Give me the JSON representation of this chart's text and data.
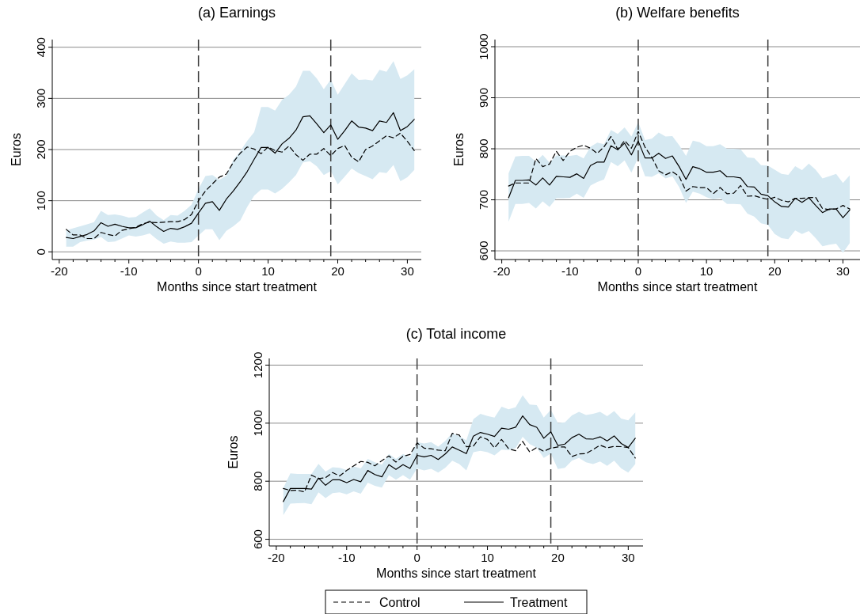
{
  "chart_data": [
    {
      "type": "line",
      "title": "(a) Earnings",
      "xlabel": "Months since start treatment",
      "ylabel": "Euros",
      "x": [
        -19,
        -18,
        -17,
        -16,
        -15,
        -14,
        -13,
        -12,
        -11,
        -10,
        -9,
        -8,
        -7,
        -6,
        -5,
        -4,
        -3,
        -2,
        -1,
        0,
        1,
        2,
        3,
        4,
        5,
        6,
        7,
        8,
        9,
        10,
        11,
        12,
        13,
        14,
        15,
        16,
        17,
        18,
        19,
        20,
        21,
        22,
        23,
        24,
        25,
        26,
        27,
        28,
        29,
        30,
        31
      ],
      "xlim": [
        -21,
        32
      ],
      "xticks": [
        -20,
        {
          "value": -18,
          "label": null
        },
        {
          "value": -16,
          "label": null
        },
        {
          "value": -14,
          "label": null
        },
        {
          "value": -12,
          "label": null
        },
        -10,
        {
          "value": -8,
          "label": null
        },
        {
          "value": -6,
          "label": null
        },
        {
          "value": -4,
          "label": null
        },
        {
          "value": -2,
          "label": null
        },
        0,
        {
          "value": 2,
          "label": null
        },
        {
          "value": 4,
          "label": null
        },
        {
          "value": 6,
          "label": null
        },
        {
          "value": 8,
          "label": null
        },
        10,
        {
          "value": 12,
          "label": null
        },
        {
          "value": 14,
          "label": null
        },
        {
          "value": 16,
          "label": null
        },
        {
          "value": 18,
          "label": null
        },
        20,
        {
          "value": 22,
          "label": null
        },
        {
          "value": 24,
          "label": null
        },
        {
          "value": 26,
          "label": null
        },
        {
          "value": 28,
          "label": null
        },
        30
      ],
      "ylim": [
        -15,
        415
      ],
      "yticks": [
        0,
        100,
        200,
        300,
        400
      ],
      "grid": "y",
      "line_style": "solid",
      "marker": "none",
      "ref_lines": [
        {
          "axis": "x",
          "value": 0,
          "line_style": "dashed",
          "color": "#3c3c3c"
        },
        {
          "axis": "x",
          "value": 19,
          "line_style": "dashed",
          "color": "#3c3c3c"
        }
      ],
      "series": [
        {
          "color": "#000000",
          "line_style": "dashed",
          "values": [
            44,
            33,
            33,
            26,
            26,
            38,
            34,
            31,
            42,
            45,
            48,
            55,
            58,
            57,
            58,
            59,
            59,
            63,
            73,
            100,
            119,
            133,
            146,
            152,
            175,
            193,
            205,
            201,
            192,
            205,
            198,
            195,
            207,
            190,
            179,
            191,
            191,
            202,
            188,
            202,
            208,
            185,
            176,
            200,
            207,
            217,
            227,
            223,
            232,
            216,
            198
          ]
        },
        {
          "color": "#000000",
          "values": [
            28,
            26,
            30,
            34,
            41,
            57,
            50,
            54,
            50,
            47,
            47,
            53,
            60,
            49,
            40,
            46,
            44,
            49,
            56,
            76,
            95,
            98,
            81,
            103,
            119,
            137,
            157,
            181,
            204,
            204,
            193,
            211,
            222,
            238,
            264,
            266,
            250,
            233,
            248,
            220,
            237,
            256,
            244,
            242,
            237,
            256,
            253,
            272,
            237,
            245,
            259
          ],
          "lower": [
            10,
            10,
            19,
            22,
            24,
            29,
            19,
            20,
            26,
            32,
            30,
            32,
            36,
            25,
            16,
            20,
            18,
            18,
            19,
            32,
            44,
            44,
            23,
            41,
            50,
            61,
            88,
            110,
            122,
            122,
            114,
            123,
            136,
            150,
            175,
            177,
            167,
            150,
            158,
            132,
            147,
            163,
            154,
            148,
            142,
            156,
            154,
            170,
            138,
            146,
            160
          ],
          "upper": [
            42,
            46,
            50,
            54,
            58,
            80,
            72,
            73,
            71,
            67,
            68,
            77,
            85,
            71,
            62,
            72,
            71,
            80,
            92,
            123,
            148,
            150,
            141,
            149,
            180,
            197,
            217,
            234,
            283,
            283,
            276,
            297,
            307,
            323,
            354,
            354,
            339,
            318,
            337,
            307,
            328,
            349,
            336,
            337,
            335,
            356,
            352,
            373,
            338,
            345,
            357
          ]
        }
      ]
    },
    {
      "type": "line",
      "title": "(b) Welfare benefits",
      "xlabel": "Months since start treatment",
      "ylabel": "Euros",
      "x": [
        -19,
        -18,
        -17,
        -16,
        -15,
        -14,
        -13,
        -12,
        -11,
        -10,
        -9,
        -8,
        -7,
        -6,
        -5,
        -4,
        -3,
        -2,
        -1,
        0,
        1,
        2,
        3,
        4,
        5,
        6,
        7,
        8,
        9,
        10,
        11,
        12,
        13,
        14,
        15,
        16,
        17,
        18,
        19,
        20,
        21,
        22,
        23,
        24,
        25,
        26,
        27,
        28,
        29,
        30,
        31
      ],
      "xlim": [
        -21,
        32.5
      ],
      "xticks": [
        -20,
        {
          "value": -18,
          "label": null
        },
        {
          "value": -16,
          "label": null
        },
        {
          "value": -14,
          "label": null
        },
        {
          "value": -12,
          "label": null
        },
        -10,
        {
          "value": -8,
          "label": null
        },
        {
          "value": -6,
          "label": null
        },
        {
          "value": -4,
          "label": null
        },
        {
          "value": -2,
          "label": null
        },
        0,
        {
          "value": 2,
          "label": null
        },
        {
          "value": 4,
          "label": null
        },
        {
          "value": 6,
          "label": null
        },
        {
          "value": 8,
          "label": null
        },
        10,
        {
          "value": 12,
          "label": null
        },
        {
          "value": 14,
          "label": null
        },
        {
          "value": 16,
          "label": null
        },
        {
          "value": 18,
          "label": null
        },
        20,
        {
          "value": 22,
          "label": null
        },
        {
          "value": 24,
          "label": null
        },
        {
          "value": 26,
          "label": null
        },
        {
          "value": 28,
          "label": null
        },
        30
      ],
      "ylim": [
        583,
        1014
      ],
      "yticks": [
        600,
        700,
        800,
        900,
        1000
      ],
      "grid": "y",
      "line_style": "solid",
      "marker": "none",
      "ref_lines": [
        {
          "axis": "x",
          "value": 0,
          "line_style": "dashed",
          "color": "#3c3c3c"
        },
        {
          "axis": "x",
          "value": 19,
          "line_style": "dashed",
          "color": "#3c3c3c"
        }
      ],
      "series": [
        {
          "color": "#000000",
          "line_style": "dashed",
          "values": [
            727,
            733,
            733,
            733,
            781,
            765,
            770,
            795,
            777,
            795,
            803,
            807,
            801,
            791,
            804,
            824,
            799,
            816,
            801,
            834,
            803,
            783,
            757,
            749,
            755,
            746,
            717,
            726,
            724,
            724,
            712,
            724,
            712,
            713,
            728,
            707,
            708,
            704,
            701,
            705,
            699,
            696,
            703,
            703,
            704,
            705,
            683,
            681,
            682,
            689,
            682
          ]
        },
        {
          "color": "#000000",
          "values": [
            704,
            738,
            738,
            739,
            729,
            743,
            729,
            746,
            745,
            744,
            751,
            742,
            767,
            774,
            774,
            806,
            798,
            811,
            788,
            815,
            782,
            782,
            791,
            781,
            786,
            765,
            740,
            765,
            761,
            754,
            754,
            757,
            745,
            745,
            743,
            726,
            725,
            711,
            708,
            696,
            687,
            686,
            703,
            695,
            704,
            689,
            675,
            682,
            682,
            665,
            680
          ],
          "lower": [
            657,
            692,
            692,
            694,
            683,
            697,
            686,
            703,
            703,
            704,
            712,
            704,
            728,
            735,
            740,
            774,
            766,
            777,
            753,
            783,
            746,
            745,
            752,
            742,
            746,
            725,
            694,
            716,
            712,
            705,
            701,
            703,
            692,
            692,
            691,
            673,
            667,
            654,
            651,
            633,
            625,
            623,
            640,
            633,
            639,
            625,
            609,
            612,
            614,
            596,
            615
          ],
          "upper": [
            752,
            785,
            786,
            786,
            775,
            788,
            773,
            787,
            787,
            786,
            788,
            781,
            804,
            812,
            809,
            837,
            829,
            842,
            824,
            852,
            817,
            820,
            832,
            824,
            825,
            807,
            786,
            816,
            813,
            805,
            805,
            809,
            800,
            800,
            799,
            783,
            782,
            768,
            767,
            759,
            751,
            749,
            766,
            758,
            771,
            759,
            742,
            746,
            751,
            733,
            748
          ]
        }
      ]
    },
    {
      "type": "line",
      "title": "(c) Total income",
      "xlabel": "Months since start treatment",
      "ylabel": "Euros",
      "legend": "bottom",
      "x": [
        -19,
        -18,
        -17,
        -16,
        -15,
        -14,
        -13,
        -12,
        -11,
        -10,
        -9,
        -8,
        -7,
        -6,
        -5,
        -4,
        -3,
        -2,
        -1,
        0,
        1,
        2,
        3,
        4,
        5,
        6,
        7,
        8,
        9,
        10,
        11,
        12,
        13,
        14,
        15,
        16,
        17,
        18,
        19,
        20,
        21,
        22,
        23,
        24,
        25,
        26,
        27,
        28,
        29,
        30,
        31
      ],
      "xlim": [
        -21,
        32.1
      ],
      "xticks": [
        -20,
        {
          "value": -18,
          "label": null
        },
        {
          "value": -16,
          "label": null
        },
        {
          "value": -14,
          "label": null
        },
        {
          "value": -12,
          "label": null
        },
        -10,
        {
          "value": -8,
          "label": null
        },
        {
          "value": -6,
          "label": null
        },
        {
          "value": -4,
          "label": null
        },
        {
          "value": -2,
          "label": null
        },
        0,
        {
          "value": 2,
          "label": null
        },
        {
          "value": 4,
          "label": null
        },
        {
          "value": 6,
          "label": null
        },
        {
          "value": 8,
          "label": null
        },
        10,
        {
          "value": 12,
          "label": null
        },
        {
          "value": 14,
          "label": null
        },
        {
          "value": 16,
          "label": null
        },
        {
          "value": 18,
          "label": null
        },
        20,
        {
          "value": 22,
          "label": null
        },
        {
          "value": 24,
          "label": null
        },
        {
          "value": 26,
          "label": null
        },
        {
          "value": 28,
          "label": null
        },
        30
      ],
      "ylim": [
        577,
        1223
      ],
      "yticks": [
        600,
        800,
        1000,
        1200
      ],
      "grid": "y",
      "line_style": "solid",
      "marker": "none",
      "ref_lines": [
        {
          "axis": "x",
          "value": 0,
          "line_style": "dashed",
          "color": "#3c3c3c"
        },
        {
          "axis": "x",
          "value": 19,
          "line_style": "dashed",
          "color": "#3c3c3c"
        }
      ],
      "series": [
        {
          "name": "Control",
          "color": "#000000",
          "line_style": "dashed",
          "values": [
            775,
            768,
            769,
            763,
            821,
            809,
            812,
            830,
            818,
            837,
            853,
            868,
            865,
            853,
            871,
            887,
            866,
            886,
            892,
            932,
            914,
            912,
            907,
            905,
            965,
            959,
            919,
            921,
            953,
            944,
            915,
            944,
            912,
            905,
            937,
            901,
            916,
            903,
            914,
            918,
            918,
            885,
            894,
            895,
            909,
            924,
            915,
            920,
            919,
            916,
            880
          ]
        },
        {
          "name": "Treatment",
          "color": "#000000",
          "values": [
            730,
            775,
            775,
            775,
            773,
            811,
            786,
            805,
            805,
            795,
            806,
            798,
            837,
            823,
            815,
            857,
            841,
            857,
            844,
            889,
            884,
            889,
            875,
            894,
            918,
            907,
            895,
            955,
            968,
            962,
            954,
            983,
            979,
            986,
            1025,
            995,
            986,
            948,
            970,
            923,
            928,
            950,
            962,
            946,
            945,
            953,
            939,
            956,
            930,
            916,
            948
          ],
          "lower": [
            683,
            723,
            724,
            725,
            721,
            762,
            742,
            759,
            762,
            755,
            765,
            757,
            795,
            784,
            778,
            821,
            805,
            821,
            805,
            844,
            837,
            843,
            830,
            846,
            871,
            859,
            837,
            900,
            905,
            900,
            889,
            909,
            907,
            914,
            953,
            928,
            916,
            880,
            895,
            842,
            846,
            871,
            880,
            865,
            859,
            868,
            853,
            871,
            844,
            830,
            859
          ],
          "upper": [
            777,
            827,
            825,
            825,
            825,
            860,
            833,
            848,
            846,
            839,
            851,
            844,
            877,
            865,
            857,
            894,
            877,
            894,
            883,
            935,
            930,
            935,
            919,
            939,
            966,
            955,
            941,
            1014,
            1032,
            1025,
            1019,
            1057,
            1048,
            1055,
            1096,
            1064,
            1062,
            1019,
            1046,
            1001,
            1003,
            1027,
            1039,
            1028,
            1032,
            1039,
            1024,
            1042,
            1016,
            1010,
            1037
          ]
        }
      ]
    }
  ]
}
